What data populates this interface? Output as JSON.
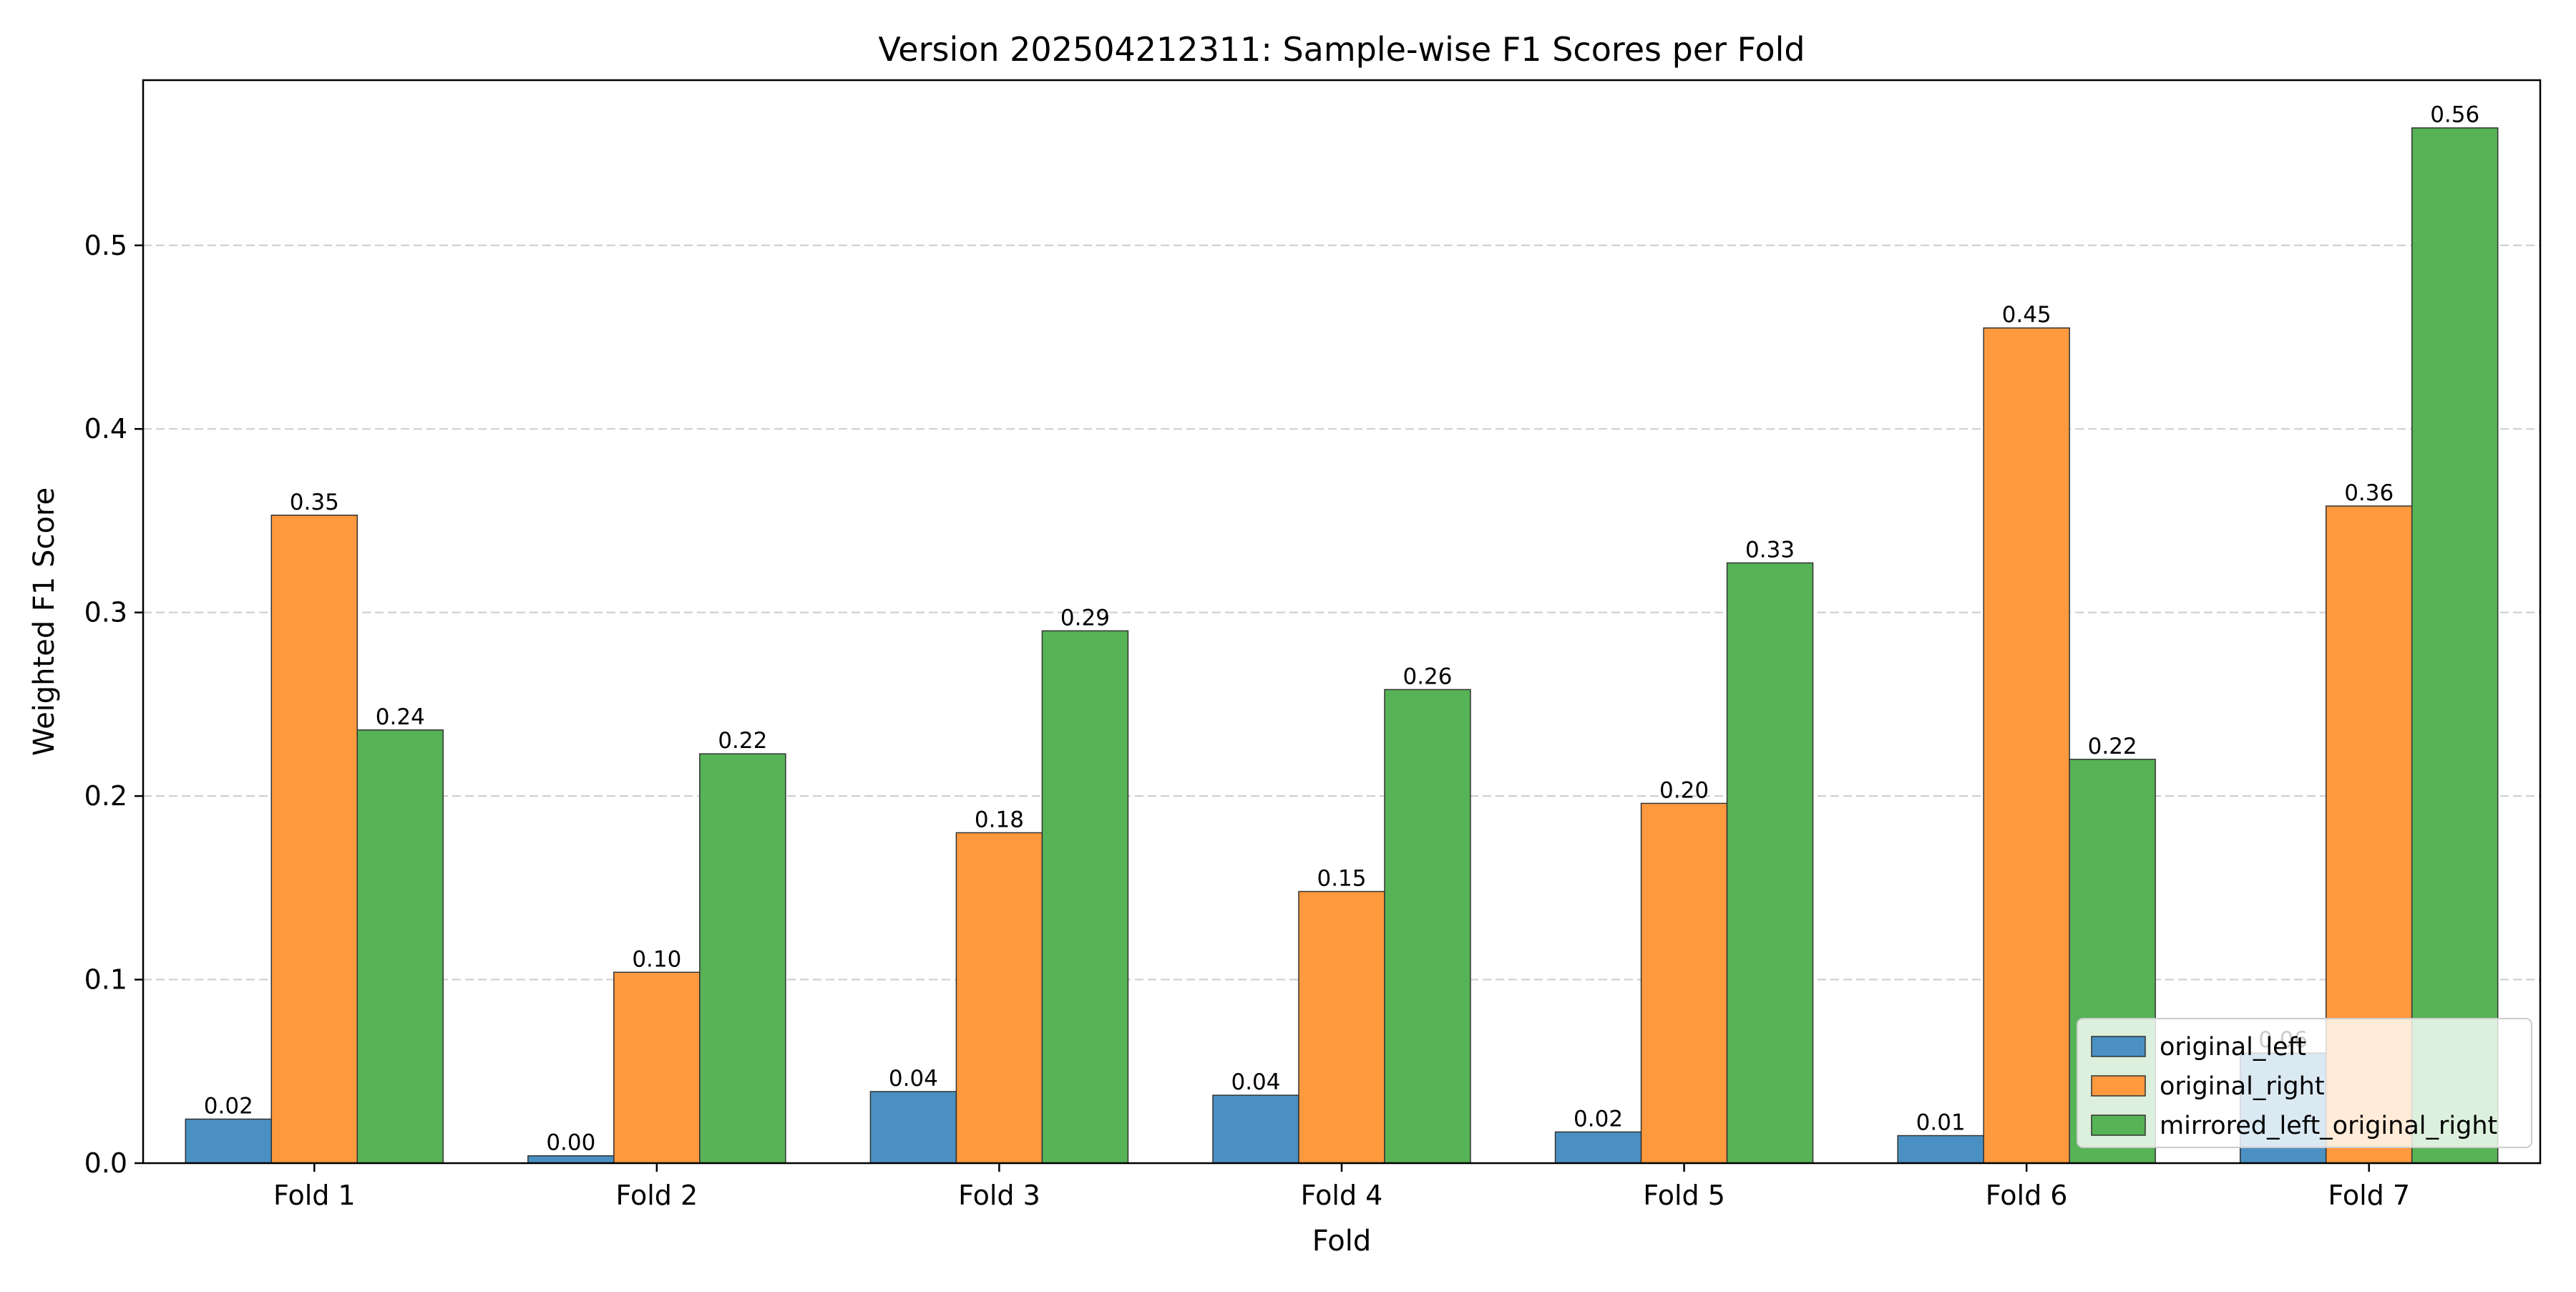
{
  "chart_data": {
    "type": "bar",
    "title": "Version 202504212311: Sample-wise F1 Scores per Fold",
    "xlabel": "Fold",
    "ylabel": "Weighted F1 Score",
    "categories": [
      "Fold 1",
      "Fold 2",
      "Fold 3",
      "Fold 4",
      "Fold 5",
      "Fold 6",
      "Fold 7"
    ],
    "ylim": [
      0,
      0.59
    ],
    "yticks": [
      0.0,
      0.1,
      0.2,
      0.3,
      0.4,
      0.5
    ],
    "ytick_labels": [
      "0.0",
      "0.1",
      "0.2",
      "0.3",
      "0.4",
      "0.5"
    ],
    "grid": "y-dashed",
    "legend_position": "bottom-right",
    "series": [
      {
        "name": "original_left",
        "color": "#4a90c2",
        "values": [
          0.024,
          0.004,
          0.039,
          0.037,
          0.017,
          0.015,
          0.06
        ],
        "labels": [
          "0.02",
          "0.00",
          "0.04",
          "0.04",
          "0.02",
          "0.01",
          "0.06"
        ]
      },
      {
        "name": "original_right",
        "color": "#ff993e",
        "values": [
          0.353,
          0.104,
          0.18,
          0.148,
          0.196,
          0.455,
          0.358
        ],
        "labels": [
          "0.35",
          "0.10",
          "0.18",
          "0.15",
          "0.20",
          "0.45",
          "0.36"
        ]
      },
      {
        "name": "mirrored_left_original_right",
        "color": "#56b356",
        "values": [
          0.236,
          0.223,
          0.29,
          0.258,
          0.327,
          0.22,
          0.564
        ],
        "labels": [
          "0.24",
          "0.22",
          "0.29",
          "0.26",
          "0.33",
          "0.22",
          "0.56"
        ]
      }
    ]
  }
}
